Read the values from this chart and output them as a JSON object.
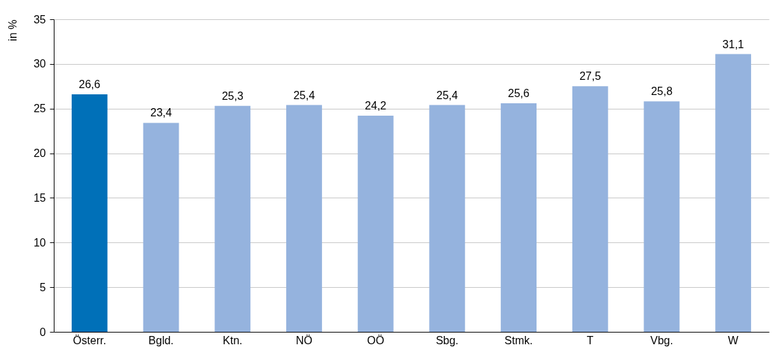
{
  "chart_data": {
    "type": "bar",
    "ylabel": "in %",
    "categories": [
      "Österr.",
      "Bgld.",
      "Ktn.",
      "NÖ",
      "OÖ",
      "Sbg.",
      "Stmk.",
      "T",
      "Vbg.",
      "W"
    ],
    "values": [
      26.6,
      23.4,
      25.3,
      25.4,
      24.2,
      25.4,
      25.6,
      27.5,
      25.8,
      31.1
    ],
    "value_labels": [
      "26,6",
      "23,4",
      "25,3",
      "25,4",
      "24,2",
      "25,4",
      "25,6",
      "27,5",
      "25,8",
      "31,1"
    ],
    "colors": [
      "#0070b8",
      "#95b3de",
      "#95b3de",
      "#95b3de",
      "#95b3de",
      "#95b3de",
      "#95b3de",
      "#95b3de",
      "#95b3de",
      "#95b3de"
    ],
    "ylim": [
      0,
      35
    ],
    "yticks": [
      0,
      5,
      10,
      15,
      20,
      25,
      30,
      35
    ],
    "grid": "y"
  }
}
